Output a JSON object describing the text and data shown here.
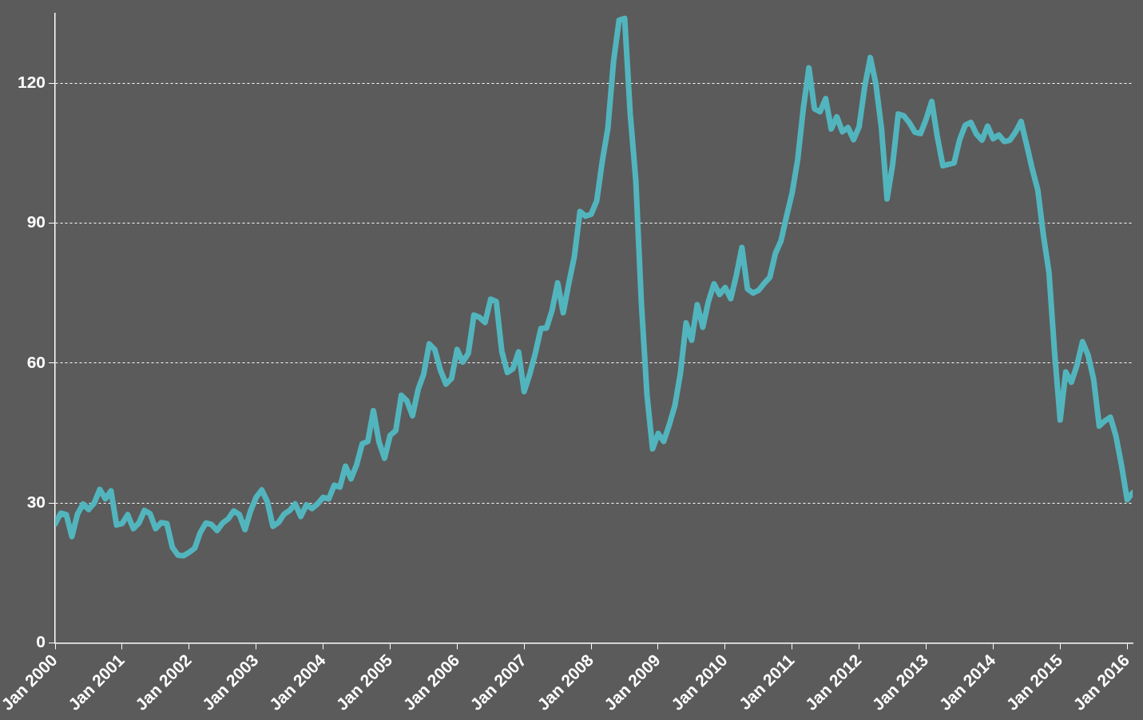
{
  "chart_data": {
    "type": "line",
    "x": [
      "2000-01",
      "2000-02",
      "2000-03",
      "2000-04",
      "2000-05",
      "2000-06",
      "2000-07",
      "2000-08",
      "2000-09",
      "2000-10",
      "2000-11",
      "2000-12",
      "2001-01",
      "2001-02",
      "2001-03",
      "2001-04",
      "2001-05",
      "2001-06",
      "2001-07",
      "2001-08",
      "2001-09",
      "2001-10",
      "2001-11",
      "2001-12",
      "2002-01",
      "2002-02",
      "2002-03",
      "2002-04",
      "2002-05",
      "2002-06",
      "2002-07",
      "2002-08",
      "2002-09",
      "2002-10",
      "2002-11",
      "2002-12",
      "2003-01",
      "2003-02",
      "2003-03",
      "2003-04",
      "2003-05",
      "2003-06",
      "2003-07",
      "2003-08",
      "2003-09",
      "2003-10",
      "2003-11",
      "2003-12",
      "2004-01",
      "2004-02",
      "2004-03",
      "2004-04",
      "2004-05",
      "2004-06",
      "2004-07",
      "2004-08",
      "2004-09",
      "2004-10",
      "2004-11",
      "2004-12",
      "2005-01",
      "2005-02",
      "2005-03",
      "2005-04",
      "2005-05",
      "2005-06",
      "2005-07",
      "2005-08",
      "2005-09",
      "2005-10",
      "2005-11",
      "2005-12",
      "2006-01",
      "2006-02",
      "2006-03",
      "2006-04",
      "2006-05",
      "2006-06",
      "2006-07",
      "2006-08",
      "2006-09",
      "2006-10",
      "2006-11",
      "2006-12",
      "2007-01",
      "2007-02",
      "2007-03",
      "2007-04",
      "2007-05",
      "2007-06",
      "2007-07",
      "2007-08",
      "2007-09",
      "2007-10",
      "2007-11",
      "2007-12",
      "2008-01",
      "2008-02",
      "2008-03",
      "2008-04",
      "2008-05",
      "2008-06",
      "2008-07",
      "2008-08",
      "2008-09",
      "2008-10",
      "2008-11",
      "2008-12",
      "2009-01",
      "2009-02",
      "2009-03",
      "2009-04",
      "2009-05",
      "2009-06",
      "2009-07",
      "2009-08",
      "2009-09",
      "2009-10",
      "2009-11",
      "2009-12",
      "2010-01",
      "2010-02",
      "2010-03",
      "2010-04",
      "2010-05",
      "2010-06",
      "2010-07",
      "2010-08",
      "2010-09",
      "2010-10",
      "2010-11",
      "2010-12",
      "2011-01",
      "2011-02",
      "2011-03",
      "2011-04",
      "2011-05",
      "2011-06",
      "2011-07",
      "2011-08",
      "2011-09",
      "2011-10",
      "2011-11",
      "2011-12",
      "2012-01",
      "2012-02",
      "2012-03",
      "2012-04",
      "2012-05",
      "2012-06",
      "2012-07",
      "2012-08",
      "2012-09",
      "2012-10",
      "2012-11",
      "2012-12",
      "2013-01",
      "2013-02",
      "2013-03",
      "2013-04",
      "2013-05",
      "2013-06",
      "2013-07",
      "2013-08",
      "2013-09",
      "2013-10",
      "2013-11",
      "2013-12",
      "2014-01",
      "2014-02",
      "2014-03",
      "2014-04",
      "2014-05",
      "2014-06",
      "2014-07",
      "2014-08",
      "2014-09",
      "2014-10",
      "2014-11",
      "2014-12",
      "2015-01",
      "2015-02",
      "2015-03",
      "2015-04",
      "2015-05",
      "2015-06",
      "2015-07",
      "2015-08",
      "2015-09",
      "2015-10",
      "2015-11",
      "2015-12",
      "2016-01",
      "2016-02"
    ],
    "color": "#52b5be",
    "values": [
      25.5,
      27.8,
      27.5,
      22.8,
      27.6,
      29.8,
      28.6,
      30.0,
      32.9,
      30.9,
      32.6,
      25.3,
      25.6,
      27.5,
      24.5,
      25.7,
      28.4,
      27.7,
      24.5,
      25.8,
      25.6,
      20.5,
      18.8,
      18.7,
      19.4,
      20.3,
      23.7,
      25.7,
      25.4,
      24.1,
      25.7,
      26.6,
      28.3,
      27.5,
      24.3,
      28.3,
      31.2,
      32.8,
      30.3,
      25.0,
      25.8,
      27.6,
      28.4,
      29.8,
      27.1,
      29.6,
      28.8,
      29.8,
      31.2,
      30.9,
      33.8,
      33.4,
      37.9,
      35.2,
      38.2,
      42.7,
      43.2,
      49.8,
      43.1,
      39.6,
      44.5,
      45.5,
      53.1,
      51.9,
      48.7,
      54.3,
      57.6,
      64.1,
      62.9,
      58.5,
      55.5,
      56.7,
      62.9,
      60.2,
      62.1,
      70.3,
      69.8,
      68.7,
      73.7,
      73.2,
      62.5,
      58.0,
      58.8,
      62.4,
      53.9,
      57.6,
      62.1,
      67.4,
      67.5,
      71.3,
      77.2,
      70.8,
      77.1,
      82.9,
      92.5,
      91.5,
      91.9,
      94.8,
      103.3,
      110.4,
      124.6,
      133.5,
      133.9,
      113.4,
      99.1,
      72.8,
      53.2,
      41.6,
      44.9,
      43.2,
      46.8,
      50.9,
      57.9,
      68.6,
      64.9,
      72.5,
      67.7,
      73.2,
      77.0,
      74.7,
      76.2,
      73.8,
      78.8,
      84.8,
      75.9,
      75.0,
      75.6,
      77.1,
      78.4,
      83.5,
      86.2,
      91.5,
      96.5,
      103.7,
      114.6,
      123.3,
      114.5,
      113.9,
      116.7,
      110.2,
      112.8,
      109.6,
      110.5,
      107.9,
      110.7,
      119.3,
      125.5,
      119.8,
      110.3,
      95.2,
      102.6,
      113.4,
      113.0,
      111.5,
      109.5,
      109.2,
      112.3,
      116.1,
      108.5,
      102.3,
      102.6,
      102.9,
      107.9,
      111.0,
      111.6,
      109.1,
      107.8,
      110.8,
      108.1,
      108.9,
      107.5,
      107.8,
      109.5,
      111.8,
      106.8,
      101.6,
      97.1,
      87.4,
      79.4,
      62.3,
      47.8,
      58.1,
      55.9,
      59.5,
      64.6,
      61.7,
      56.5,
      46.5,
      47.6,
      48.4,
      44.3,
      38.0,
      30.7,
      32.2
    ],
    "xlim": [
      "2000-01",
      "2016-02"
    ],
    "xticks": [
      {
        "value": "2000-01",
        "label": "Jan 2000"
      },
      {
        "value": "2001-01",
        "label": "Jan 2001"
      },
      {
        "value": "2002-01",
        "label": "Jan 2002"
      },
      {
        "value": "2003-01",
        "label": "Jan 2003"
      },
      {
        "value": "2004-01",
        "label": "Jan 2004"
      },
      {
        "value": "2005-01",
        "label": "Jan 2005"
      },
      {
        "value": "2006-01",
        "label": "Jan 2006"
      },
      {
        "value": "2007-01",
        "label": "Jan 2007"
      },
      {
        "value": "2008-01",
        "label": "Jan 2008"
      },
      {
        "value": "2009-01",
        "label": "Jan 2009"
      },
      {
        "value": "2010-01",
        "label": "Jan 2010"
      },
      {
        "value": "2011-01",
        "label": "Jan 2011"
      },
      {
        "value": "2012-01",
        "label": "Jan 2012"
      },
      {
        "value": "2013-01",
        "label": "Jan 2013"
      },
      {
        "value": "2014-01",
        "label": "Jan 2014"
      },
      {
        "value": "2015-01",
        "label": "Jan 2015"
      },
      {
        "value": "2016-01",
        "label": "Jan 2016"
      }
    ],
    "ylim": [
      0,
      135
    ],
    "yticks": [
      0,
      30,
      60,
      90,
      120
    ],
    "grid": "y",
    "legend": false,
    "marker": "none",
    "line_style": "solid"
  }
}
